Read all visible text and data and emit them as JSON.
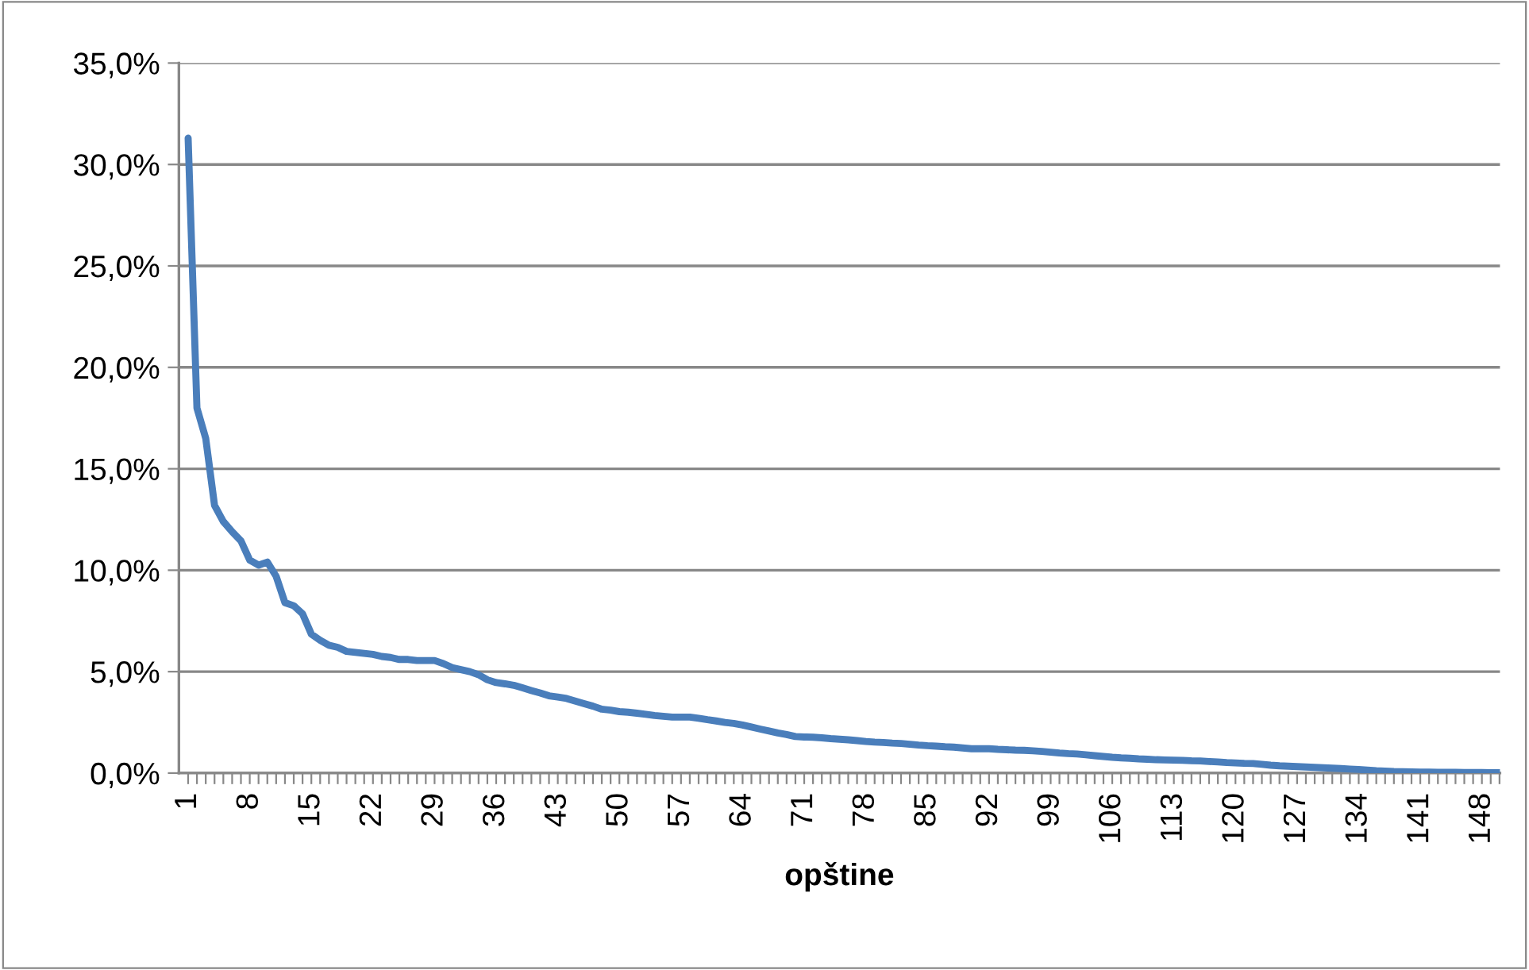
{
  "chart_data": {
    "type": "line",
    "xlabel": "opštine",
    "categories": [
      "1",
      null,
      null,
      null,
      null,
      null,
      null,
      "8",
      null,
      null,
      null,
      null,
      null,
      null,
      "15",
      null,
      null,
      null,
      null,
      null,
      null,
      "22",
      null,
      null,
      null,
      null,
      null,
      null,
      "29",
      null,
      null,
      null,
      null,
      null,
      null,
      "36",
      null,
      null,
      null,
      null,
      null,
      null,
      "43",
      null,
      null,
      null,
      null,
      null,
      null,
      "50",
      null,
      null,
      null,
      null,
      null,
      null,
      "57",
      null,
      null,
      null,
      null,
      null,
      null,
      "64",
      null,
      null,
      null,
      null,
      null,
      null,
      "71",
      null,
      null,
      null,
      null,
      null,
      null,
      "78",
      null,
      null,
      null,
      null,
      null,
      null,
      "85",
      null,
      null,
      null,
      null,
      null,
      null,
      "92",
      null,
      null,
      null,
      null,
      null,
      null,
      "99",
      null,
      null,
      null,
      null,
      null,
      null,
      "106",
      null,
      null,
      null,
      null,
      null,
      null,
      "113",
      null,
      null,
      null,
      null,
      null,
      null,
      "120",
      null,
      null,
      null,
      null,
      null,
      null,
      "127",
      null,
      null,
      null,
      null,
      null,
      null,
      "134",
      null,
      null,
      null,
      null,
      null,
      null,
      "141",
      null,
      null,
      null,
      null,
      null,
      null,
      "148",
      null,
      null
    ],
    "series": [
      {
        "color": "#4a7ebb",
        "values": [
          31.3,
          18.0,
          16.5,
          13.2,
          12.4,
          11.9,
          11.45,
          10.5,
          10.25,
          10.4,
          9.7,
          8.4,
          8.25,
          7.85,
          6.85,
          6.55,
          6.3,
          6.2,
          6.0,
          5.95,
          5.9,
          5.85,
          5.75,
          5.7,
          5.6,
          5.6,
          5.55,
          5.55,
          5.55,
          5.4,
          5.2,
          5.1,
          5.0,
          4.85,
          4.6,
          4.46,
          4.4,
          4.33,
          4.2,
          4.07,
          3.95,
          3.81,
          3.75,
          3.68,
          3.55,
          3.42,
          3.3,
          3.15,
          3.1,
          3.03,
          3.0,
          2.95,
          2.9,
          2.84,
          2.8,
          2.76,
          2.76,
          2.76,
          2.7,
          2.63,
          2.57,
          2.5,
          2.45,
          2.37,
          2.27,
          2.17,
          2.08,
          1.98,
          1.9,
          1.8,
          1.78,
          1.77,
          1.74,
          1.7,
          1.67,
          1.64,
          1.6,
          1.56,
          1.53,
          1.51,
          1.48,
          1.46,
          1.42,
          1.38,
          1.35,
          1.33,
          1.3,
          1.28,
          1.24,
          1.2,
          1.2,
          1.2,
          1.17,
          1.15,
          1.13,
          1.12,
          1.1,
          1.07,
          1.03,
          0.99,
          0.96,
          0.94,
          0.9,
          0.86,
          0.82,
          0.78,
          0.75,
          0.73,
          0.7,
          0.68,
          0.66,
          0.65,
          0.64,
          0.63,
          0.61,
          0.6,
          0.57,
          0.55,
          0.52,
          0.5,
          0.48,
          0.47,
          0.43,
          0.39,
          0.36,
          0.34,
          0.32,
          0.3,
          0.28,
          0.26,
          0.24,
          0.22,
          0.2,
          0.18,
          0.15,
          0.12,
          0.1,
          0.08,
          0.07,
          0.06,
          0.05,
          0.05,
          0.04,
          0.04,
          0.04,
          0.03,
          0.03,
          0.03,
          0.02,
          0.02
        ]
      }
    ],
    "ylim": [
      0,
      35
    ],
    "yticks": [
      {
        "value": 0,
        "label": "0,0%"
      },
      {
        "value": 5,
        "label": "5,0%"
      },
      {
        "value": 10,
        "label": "10,0%"
      },
      {
        "value": 15,
        "label": "15,0%"
      },
      {
        "value": 20,
        "label": "20,0%"
      },
      {
        "value": 25,
        "label": "25,0%"
      },
      {
        "value": 30,
        "label": "30,0%"
      },
      {
        "value": 35,
        "label": "35,0%"
      }
    ],
    "grid": "y",
    "marker": "none",
    "line_style": "solid"
  }
}
